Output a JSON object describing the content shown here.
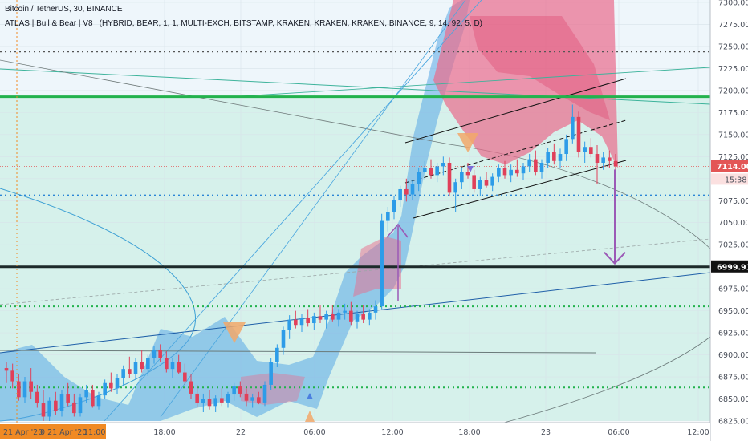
{
  "header": {
    "title": "Bitcoin / TetherUS, 30, BINANCE",
    "indicator": "ATLAS | Bull & Bear | V8 | (HYBRID, BEAR, 1, 1, MULTI-EXCH, BITSTAMP, KRAKEN, KRAKEN, KRAKEN, BINANCE, 9, 14, 92, 5, D)"
  },
  "price_axis": {
    "ticks": [
      "7300.00",
      "7275.00",
      "7250.00",
      "7225.00",
      "7200.00",
      "7175.00",
      "7150.00",
      "7125.00",
      "7100.00",
      "7075.00",
      "7050.00",
      "7025.00",
      "7000.00",
      "6975.00",
      "6950.00",
      "6925.00",
      "6900.00",
      "6875.00",
      "6850.00",
      "6825.00"
    ],
    "last_price_label": "7114.00",
    "countdown_label": "15:38",
    "level_label": "6999.91"
  },
  "time_axis": {
    "ticks": [
      "18:00",
      "22",
      "06:00",
      "12:00",
      "18:00",
      "23",
      "06:00",
      "12:00"
    ],
    "cursor_labels": [
      "21 Apr '20",
      "0  21 Apr '20",
      "11:00"
    ]
  },
  "colors": {
    "bull": "#2d9ce8",
    "bear": "#e0405a",
    "cloud": "#5aa8e6",
    "bear_cloud": "#ea6b8c",
    "zone": "#cfeee8",
    "green_level": "#22b24c",
    "black_level": "#1d2a2a",
    "arrow": "#9b59b6",
    "last_price": "#e35656"
  },
  "chart_data": {
    "type": "candlestick",
    "symbol": "BTCUSDT",
    "interval": "30",
    "exchange": "BINANCE",
    "ylim": [
      6820,
      7305
    ],
    "levels": {
      "green_solid": 7193,
      "black_solid": 6999.91,
      "dotted_grey_top": 7244,
      "dotted_blue_mid": 7081,
      "dotted_green_1": 6955,
      "dotted_green_2": 6863,
      "last_price": 7114
    },
    "projection_target": 7000,
    "candles": [
      [
        6885,
        6892,
        6868,
        6882
      ],
      [
        6882,
        6890,
        6862,
        6870
      ],
      [
        6870,
        6878,
        6848,
        6852
      ],
      [
        6852,
        6875,
        6845,
        6870
      ],
      [
        6870,
        6885,
        6850,
        6858
      ],
      [
        6858,
        6866,
        6840,
        6845
      ],
      [
        6845,
        6860,
        6825,
        6830
      ],
      [
        6830,
        6852,
        6825,
        6848
      ],
      [
        6848,
        6858,
        6832,
        6836
      ],
      [
        6836,
        6860,
        6830,
        6855
      ],
      [
        6855,
        6868,
        6842,
        6846
      ],
      [
        6846,
        6856,
        6830,
        6834
      ],
      [
        6834,
        6856,
        6830,
        6852
      ],
      [
        6852,
        6866,
        6845,
        6860
      ],
      [
        6860,
        6866,
        6840,
        6842
      ],
      [
        6842,
        6858,
        6838,
        6854
      ],
      [
        6854,
        6872,
        6850,
        6868
      ],
      [
        6868,
        6880,
        6858,
        6862
      ],
      [
        6862,
        6878,
        6855,
        6874
      ],
      [
        6874,
        6888,
        6866,
        6884
      ],
      [
        6884,
        6898,
        6874,
        6878
      ],
      [
        6878,
        6896,
        6872,
        6892
      ],
      [
        6892,
        6905,
        6880,
        6884
      ],
      [
        6884,
        6900,
        6876,
        6896
      ],
      [
        6896,
        6910,
        6890,
        6906
      ],
      [
        6906,
        6912,
        6892,
        6896
      ],
      [
        6896,
        6904,
        6880,
        6884
      ],
      [
        6884,
        6896,
        6874,
        6892
      ],
      [
        6892,
        6900,
        6878,
        6880
      ],
      [
        6880,
        6890,
        6866,
        6870
      ],
      [
        6870,
        6878,
        6850,
        6856
      ],
      [
        6856,
        6866,
        6840,
        6845
      ],
      [
        6845,
        6856,
        6835,
        6850
      ],
      [
        6850,
        6860,
        6838,
        6842
      ],
      [
        6842,
        6854,
        6835,
        6851
      ],
      [
        6851,
        6862,
        6842,
        6846
      ],
      [
        6846,
        6858,
        6840,
        6855
      ],
      [
        6855,
        6868,
        6848,
        6864
      ],
      [
        6864,
        6870,
        6852,
        6856
      ],
      [
        6856,
        6862,
        6842,
        6848
      ],
      [
        6848,
        6856,
        6840,
        6852
      ],
      [
        6852,
        6858,
        6844,
        6846
      ],
      [
        6846,
        6870,
        6842,
        6866
      ],
      [
        6866,
        6896,
        6860,
        6892
      ],
      [
        6892,
        6912,
        6886,
        6908
      ],
      [
        6908,
        6932,
        6900,
        6928
      ],
      [
        6928,
        6945,
        6918,
        6940
      ],
      [
        6940,
        6950,
        6930,
        6934
      ],
      [
        6934,
        6946,
        6926,
        6942
      ],
      [
        6942,
        6952,
        6932,
        6936
      ],
      [
        6936,
        6948,
        6928,
        6944
      ],
      [
        6944,
        6956,
        6936,
        6940
      ],
      [
        6940,
        6950,
        6930,
        6946
      ],
      [
        6946,
        6956,
        6938,
        6940
      ],
      [
        6940,
        6952,
        6932,
        6948
      ],
      [
        6948,
        6958,
        6940,
        6950
      ],
      [
        6950,
        6960,
        6934,
        6938
      ],
      [
        6938,
        6950,
        6930,
        6946
      ],
      [
        6946,
        6956,
        6936,
        6940
      ],
      [
        6940,
        6952,
        6934,
        6948
      ],
      [
        6948,
        6962,
        6940,
        6955
      ],
      [
        6955,
        7060,
        6952,
        7052
      ],
      [
        7052,
        7068,
        7040,
        7062
      ],
      [
        7062,
        7080,
        7054,
        7076
      ],
      [
        7076,
        7092,
        7068,
        7088
      ],
      [
        7088,
        7100,
        7074,
        7082
      ],
      [
        7082,
        7098,
        7076,
        7094
      ],
      [
        7094,
        7112,
        7086,
        7108
      ],
      [
        7108,
        7120,
        7098,
        7112
      ],
      [
        7112,
        7122,
        7100,
        7104
      ],
      [
        7104,
        7118,
        7096,
        7114
      ],
      [
        7114,
        7125,
        7104,
        7118
      ],
      [
        7118,
        7124,
        7080,
        7084
      ],
      [
        7084,
        7100,
        7062,
        7096
      ],
      [
        7096,
        7112,
        7088,
        7108
      ],
      [
        7108,
        7118,
        7100,
        7104
      ],
      [
        7104,
        7110,
        7084,
        7088
      ],
      [
        7088,
        7102,
        7080,
        7098
      ],
      [
        7098,
        7108,
        7090,
        7092
      ],
      [
        7092,
        7106,
        7086,
        7102
      ],
      [
        7102,
        7116,
        7096,
        7112
      ],
      [
        7112,
        7120,
        7100,
        7104
      ],
      [
        7104,
        7116,
        7096,
        7110
      ],
      [
        7110,
        7122,
        7102,
        7106
      ],
      [
        7106,
        7118,
        7098,
        7114
      ],
      [
        7114,
        7128,
        7108,
        7122
      ],
      [
        7122,
        7132,
        7104,
        7108
      ],
      [
        7108,
        7122,
        7100,
        7118
      ],
      [
        7118,
        7135,
        7112,
        7130
      ],
      [
        7130,
        7140,
        7116,
        7120
      ],
      [
        7120,
        7134,
        7112,
        7128
      ],
      [
        7128,
        7150,
        7120,
        7145
      ],
      [
        7145,
        7184,
        7140,
        7170
      ],
      [
        7170,
        7176,
        7124,
        7130
      ],
      [
        7130,
        7142,
        7118,
        7136
      ],
      [
        7136,
        7146,
        7124,
        7128
      ],
      [
        7128,
        7138,
        7094,
        7118
      ],
      [
        7118,
        7130,
        7110,
        7124
      ],
      [
        7124,
        7132,
        7112,
        7120
      ],
      [
        7120,
        7128,
        7104,
        7114
      ]
    ],
    "candle_spacing_units": 1
  }
}
